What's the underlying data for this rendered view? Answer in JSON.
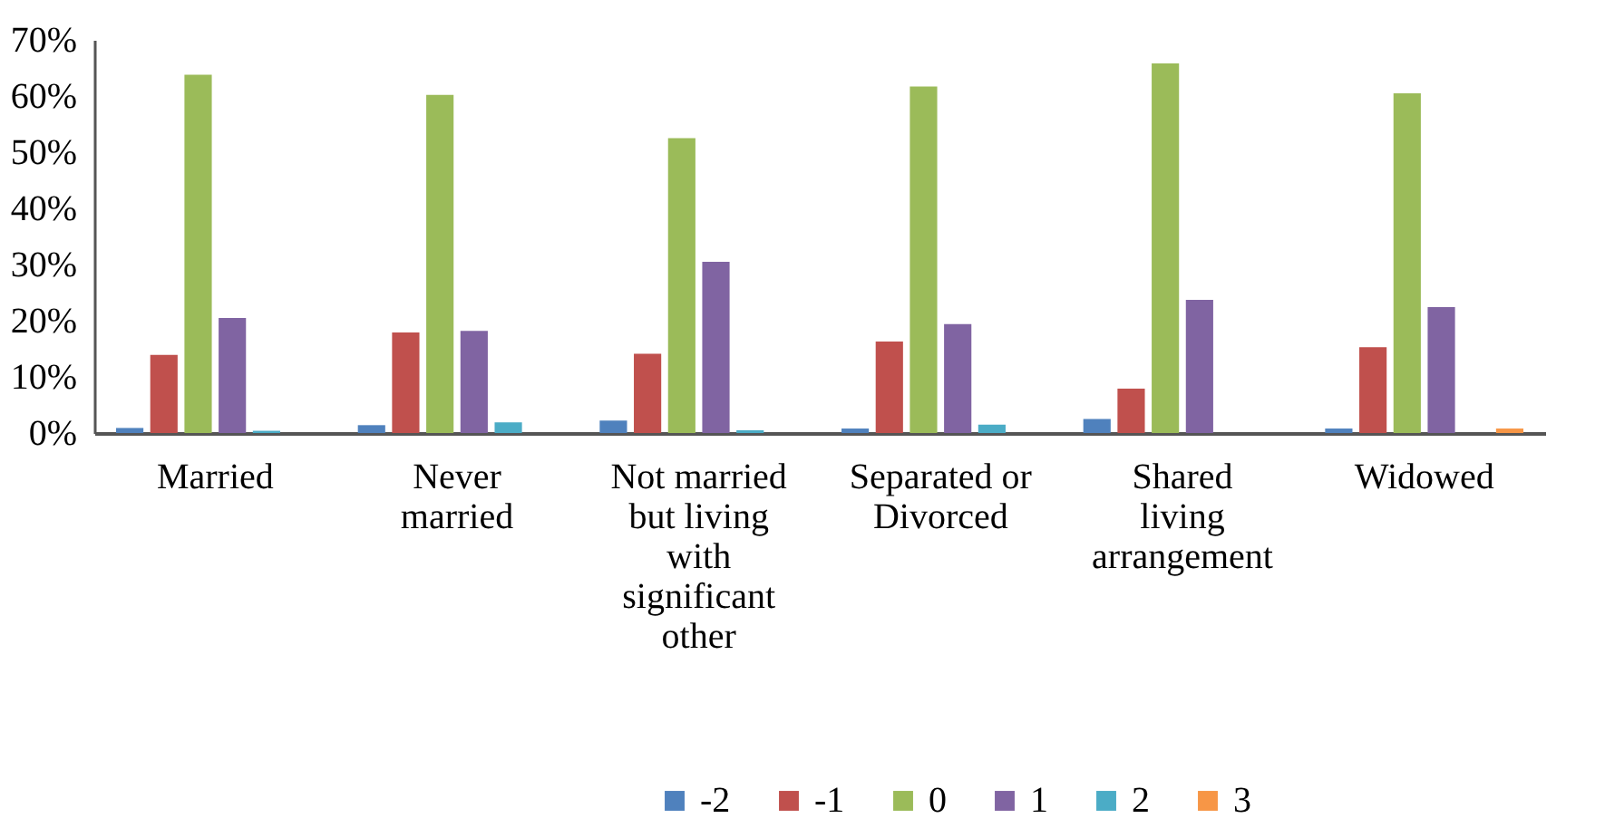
{
  "chart_data": {
    "type": "bar",
    "categories": [
      "Married",
      "Never married",
      "Not married but living with significant other",
      "Separated or Divorced",
      "Shared living arrangement",
      "Widowed"
    ],
    "series": [
      {
        "name": "-2",
        "color": "#4f81bd",
        "values": [
          0.9,
          1.4,
          2.2,
          0.8,
          2.5,
          0.8
        ]
      },
      {
        "name": "-1",
        "color": "#c0504d",
        "values": [
          13.9,
          17.9,
          14.1,
          16.3,
          7.9,
          15.3
        ]
      },
      {
        "name": "0",
        "color": "#9bbb59",
        "values": [
          63.8,
          60.2,
          52.5,
          61.7,
          65.8,
          60.5
        ]
      },
      {
        "name": "1",
        "color": "#8064a2",
        "values": [
          20.5,
          18.2,
          30.5,
          19.4,
          23.7,
          22.4
        ]
      },
      {
        "name": "2",
        "color": "#4bacc6",
        "values": [
          0.4,
          1.9,
          0.5,
          1.5,
          null,
          null
        ]
      },
      {
        "name": "3",
        "color": "#f79646",
        "values": [
          null,
          null,
          null,
          null,
          null,
          0.8
        ]
      }
    ],
    "ylim": [
      0,
      70
    ],
    "yticks": [
      {
        "value": 0,
        "label": "0%"
      },
      {
        "value": 10,
        "label": "10%"
      },
      {
        "value": 20,
        "label": "20%"
      },
      {
        "value": 30,
        "label": "30%"
      },
      {
        "value": 40,
        "label": "40%"
      },
      {
        "value": 50,
        "label": "50%"
      },
      {
        "value": 60,
        "label": "60%"
      },
      {
        "value": 70,
        "label": "70%"
      }
    ],
    "grid": false,
    "legend": "bottom"
  }
}
